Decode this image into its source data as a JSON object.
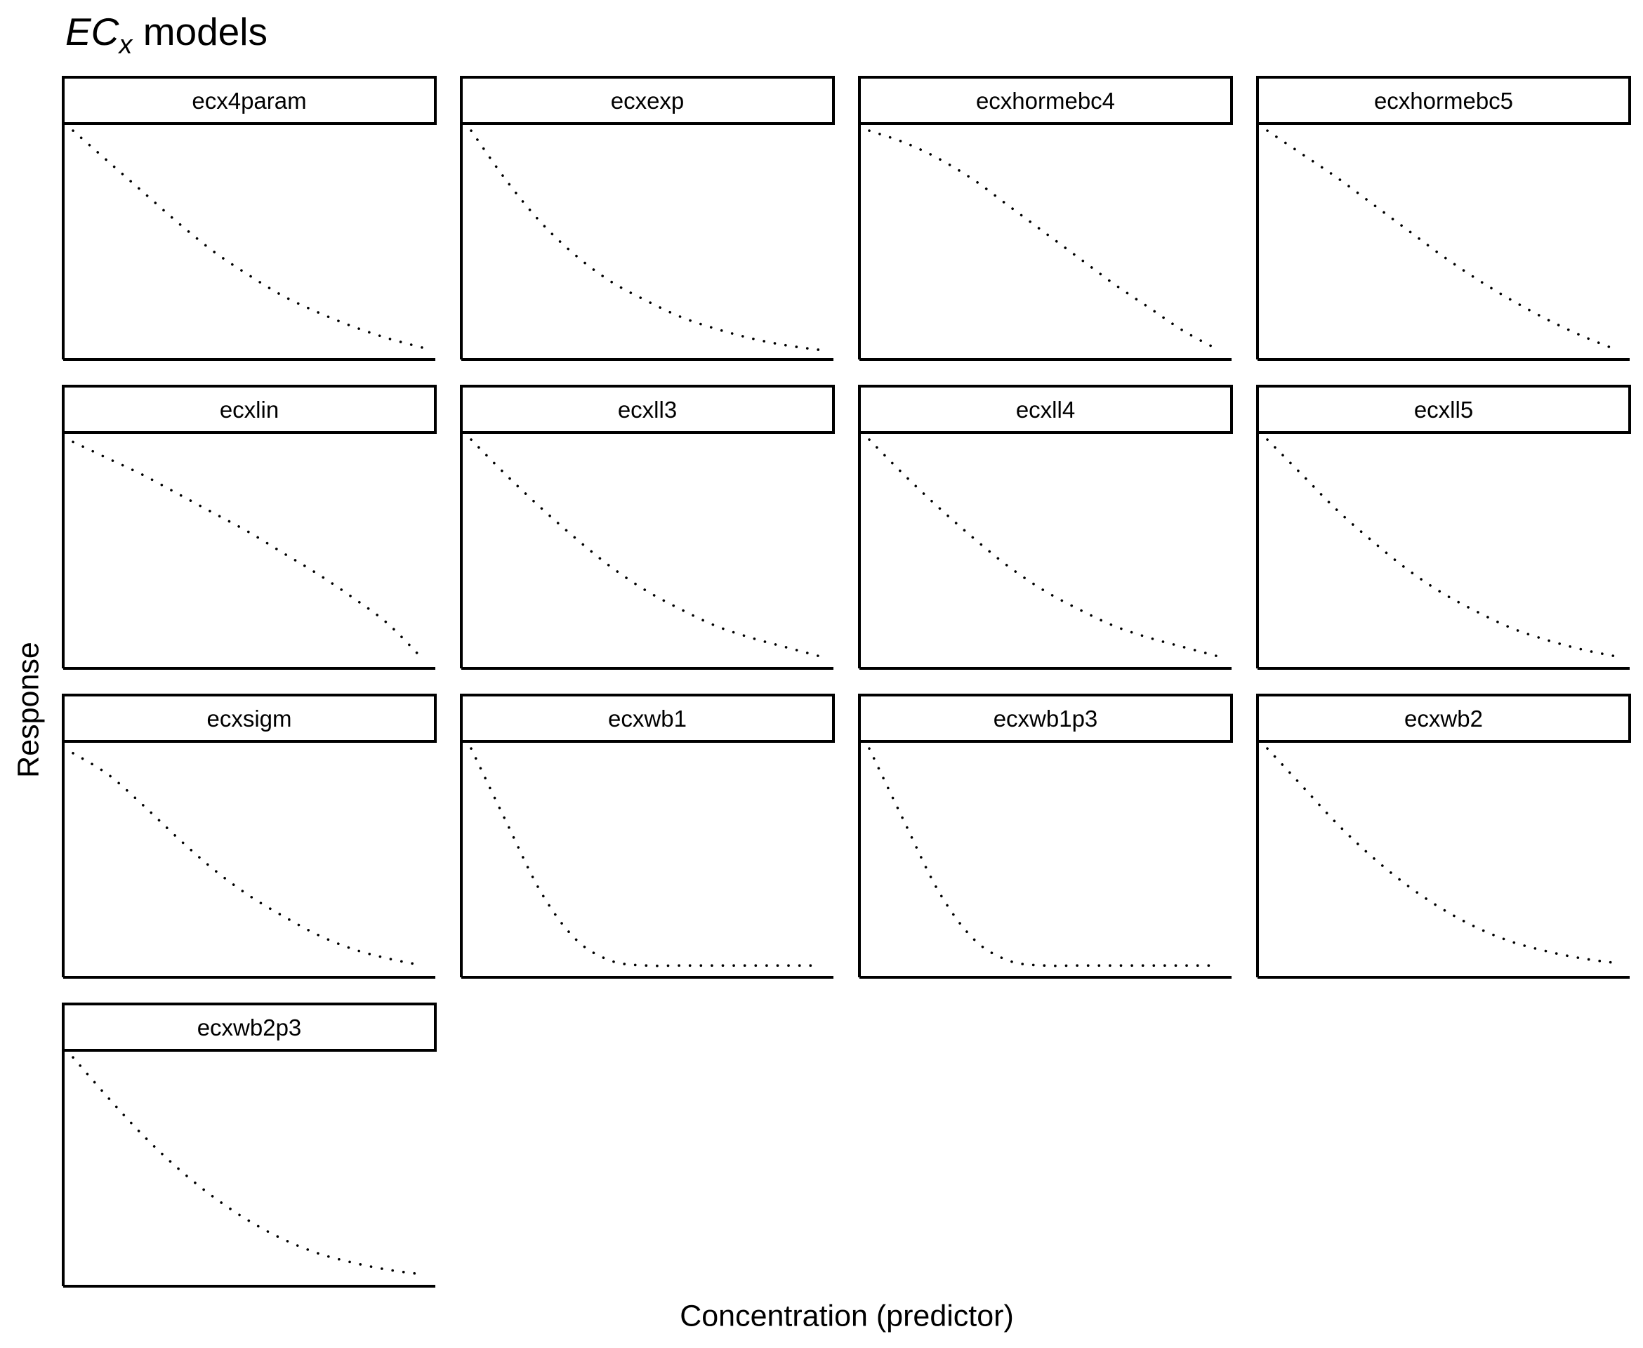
{
  "title": {
    "math": "EC",
    "subscript": "x",
    "text": "models"
  },
  "ylabel": "Response",
  "xlabel": "Concentration (predictor)",
  "chart_data": {
    "type": "line",
    "layout": "facet-grid, 4 columns",
    "axis_ticks": "none",
    "grid": false,
    "legend": "none",
    "line_style": "dotted",
    "x_range": [
      0,
      1
    ],
    "y_range": [
      0,
      1
    ],
    "panels": [
      {
        "name": "ecx4param",
        "x": [
          0,
          0.1,
          0.2,
          0.3,
          0.4,
          0.5,
          0.6,
          0.7,
          0.8,
          0.9,
          1.0
        ],
        "y": [
          0.97,
          0.84,
          0.71,
          0.58,
          0.46,
          0.36,
          0.27,
          0.2,
          0.14,
          0.09,
          0.05
        ]
      },
      {
        "name": "ecxexp",
        "x": [
          0,
          0.1,
          0.2,
          0.3,
          0.4,
          0.5,
          0.6,
          0.7,
          0.8,
          0.9,
          1.0
        ],
        "y": [
          0.97,
          0.76,
          0.58,
          0.44,
          0.33,
          0.25,
          0.18,
          0.13,
          0.09,
          0.06,
          0.04
        ]
      },
      {
        "name": "ecxhormebc4",
        "x": [
          0,
          0.1,
          0.2,
          0.3,
          0.4,
          0.5,
          0.6,
          0.7,
          0.8,
          0.9,
          1.0
        ],
        "y": [
          0.97,
          0.92,
          0.85,
          0.76,
          0.65,
          0.54,
          0.43,
          0.32,
          0.22,
          0.12,
          0.04
        ]
      },
      {
        "name": "ecxhormebc5",
        "x": [
          0,
          0.1,
          0.2,
          0.3,
          0.4,
          0.5,
          0.6,
          0.7,
          0.8,
          0.9,
          1.0
        ],
        "y": [
          0.97,
          0.87,
          0.77,
          0.66,
          0.55,
          0.44,
          0.34,
          0.25,
          0.17,
          0.1,
          0.04
        ]
      },
      {
        "name": "ecxlin",
        "x": [
          0,
          0.1,
          0.2,
          0.3,
          0.4,
          0.5,
          0.6,
          0.7,
          0.8,
          0.9,
          1.0
        ],
        "y": [
          0.96,
          0.89,
          0.82,
          0.74,
          0.66,
          0.58,
          0.49,
          0.4,
          0.3,
          0.19,
          0.04
        ]
      },
      {
        "name": "ecxll3",
        "x": [
          0,
          0.1,
          0.2,
          0.3,
          0.4,
          0.5,
          0.6,
          0.7,
          0.8,
          0.9,
          1.0
        ],
        "y": [
          0.97,
          0.82,
          0.68,
          0.55,
          0.43,
          0.33,
          0.25,
          0.18,
          0.13,
          0.09,
          0.05
        ]
      },
      {
        "name": "ecxll4",
        "x": [
          0,
          0.1,
          0.2,
          0.3,
          0.4,
          0.5,
          0.6,
          0.7,
          0.8,
          0.9,
          1.0
        ],
        "y": [
          0.97,
          0.82,
          0.68,
          0.55,
          0.43,
          0.33,
          0.25,
          0.18,
          0.13,
          0.09,
          0.05
        ]
      },
      {
        "name": "ecxll5",
        "x": [
          0,
          0.1,
          0.2,
          0.3,
          0.4,
          0.5,
          0.6,
          0.7,
          0.8,
          0.9,
          1.0
        ],
        "y": [
          0.97,
          0.82,
          0.67,
          0.54,
          0.42,
          0.32,
          0.24,
          0.17,
          0.12,
          0.08,
          0.05
        ]
      },
      {
        "name": "ecxsigm",
        "x": [
          0,
          0.1,
          0.2,
          0.3,
          0.4,
          0.5,
          0.6,
          0.7,
          0.8,
          0.9,
          1.0
        ],
        "y": [
          0.95,
          0.86,
          0.73,
          0.59,
          0.46,
          0.35,
          0.26,
          0.18,
          0.12,
          0.08,
          0.05
        ]
      },
      {
        "name": "ecxwb1",
        "x": [
          0,
          0.1,
          0.2,
          0.3,
          0.4,
          0.5,
          0.6,
          0.7,
          0.8,
          0.9,
          1.0
        ],
        "y": [
          0.97,
          0.66,
          0.36,
          0.16,
          0.07,
          0.05,
          0.05,
          0.05,
          0.05,
          0.05,
          0.05
        ]
      },
      {
        "name": "ecxwb1p3",
        "x": [
          0,
          0.1,
          0.2,
          0.3,
          0.4,
          0.5,
          0.6,
          0.7,
          0.8,
          0.9,
          1.0
        ],
        "y": [
          0.97,
          0.66,
          0.36,
          0.16,
          0.07,
          0.05,
          0.05,
          0.05,
          0.05,
          0.05,
          0.05
        ]
      },
      {
        "name": "ecxwb2",
        "x": [
          0,
          0.1,
          0.2,
          0.3,
          0.4,
          0.5,
          0.6,
          0.7,
          0.8,
          0.9,
          1.0
        ],
        "y": [
          0.97,
          0.81,
          0.65,
          0.51,
          0.39,
          0.29,
          0.21,
          0.15,
          0.11,
          0.08,
          0.06
        ]
      },
      {
        "name": "ecxwb2p3",
        "x": [
          0,
          0.1,
          0.2,
          0.3,
          0.4,
          0.5,
          0.6,
          0.7,
          0.8,
          0.9,
          1.0
        ],
        "y": [
          0.97,
          0.8,
          0.64,
          0.5,
          0.38,
          0.28,
          0.2,
          0.14,
          0.1,
          0.07,
          0.05
        ]
      }
    ]
  }
}
